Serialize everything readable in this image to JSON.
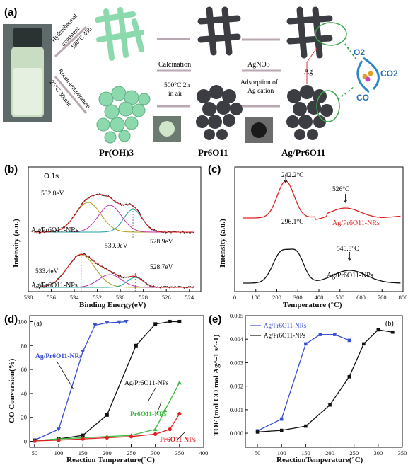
{
  "panel_labels": {
    "a": "(a)",
    "b": "(b)",
    "c": "(c)",
    "d": "(d)",
    "e": "(e)"
  },
  "scheme": {
    "route_top": [
      "Hydrothermal",
      "treatment",
      "180°C 45h"
    ],
    "route_bottom": [
      "Room-temperature",
      "25°C 30min"
    ],
    "calcination": "Calcination",
    "calc_cond": [
      "500°C 2h",
      "in air"
    ],
    "agno3": "AgNO3",
    "adsorption": [
      "Adsorption of",
      "Ag cation"
    ],
    "ag": "Ag",
    "o2": "O2",
    "co": "CO",
    "co2": "CO2",
    "names": [
      "Pr(OH)3",
      "Pr6O11",
      "Ag/Pr6O11"
    ]
  },
  "chart_data": [
    {
      "type": "line",
      "panel": "b",
      "title": "O 1s",
      "xlabel": "Binding Energy(eV)",
      "ylabel": "Intensity (a.u.)",
      "xlim": [
        538,
        523
      ],
      "xticks": [
        538,
        536,
        534,
        532,
        530,
        528,
        526,
        524
      ],
      "series": [
        {
          "name": "Ag/Pr6O11-NRs",
          "peaks": [
            532.8,
            530.9,
            528.9
          ],
          "peak_labels": [
            "532.8eV",
            "530.9eV",
            "528.9eV"
          ]
        },
        {
          "name": "Ag/Pr6O11-NPs",
          "peaks": [
            533.4,
            530.9,
            528.7
          ],
          "peak_labels": [
            "533.4eV",
            "",
            "528.7eV"
          ]
        }
      ]
    },
    {
      "type": "line",
      "panel": "c",
      "xlabel": "Temperature (°C)",
      "ylabel": "Intensity (a.u.)",
      "xlim": [
        0,
        800
      ],
      "xticks": [
        0,
        100,
        200,
        300,
        400,
        500,
        600,
        700,
        800
      ],
      "series": [
        {
          "name": "Ag/Pr6O11-NRs",
          "color": "#e02020",
          "peaks": [
            242.2,
            526
          ],
          "peak_labels": [
            "242.2°C",
            "526°C"
          ]
        },
        {
          "name": "Ag/Pr6O11-NPs",
          "color": "#111111",
          "peaks": [
            296.1,
            545.8
          ],
          "peak_labels": [
            "296.1°C",
            "545.8°C"
          ]
        }
      ]
    },
    {
      "type": "line",
      "panel": "d",
      "subtitle": "(a)",
      "xlabel": "Reaction Temperature(°C)",
      "ylabel": "CO Conversion(%)",
      "xlim": [
        40,
        400
      ],
      "ylim": [
        -5,
        105
      ],
      "xticks": [
        50,
        100,
        150,
        200,
        250,
        300,
        350,
        400
      ],
      "yticks": [
        0,
        20,
        40,
        60,
        80,
        100
      ],
      "series": [
        {
          "name": "Ag/Pr6O11-NRs",
          "color": "#3a4fd0",
          "marker": "triangle-down",
          "x": [
            50,
            100,
            150,
            175,
            200,
            225,
            240
          ],
          "y": [
            1,
            10,
            75,
            97,
            99,
            99.5,
            100
          ]
        },
        {
          "name": "Ag/Pr6O11-NPs",
          "color": "#111111",
          "marker": "square",
          "x": [
            50,
            100,
            150,
            200,
            260,
            300,
            330,
            350
          ],
          "y": [
            0.5,
            2,
            5,
            22,
            80,
            98,
            100,
            100
          ]
        },
        {
          "name": "Pr6O11-NRs",
          "color": "#3cb83c",
          "marker": "triangle-up",
          "x": [
            50,
            100,
            150,
            200,
            250,
            300,
            320,
            350
          ],
          "y": [
            0.5,
            2,
            3,
            4,
            5,
            10,
            26,
            49
          ]
        },
        {
          "name": "Pr6O11-NPs",
          "color": "#e02020",
          "marker": "circle",
          "x": [
            50,
            100,
            150,
            200,
            250,
            300,
            330,
            350
          ],
          "y": [
            0.3,
            1,
            2,
            3,
            4,
            6,
            10,
            23
          ]
        }
      ]
    },
    {
      "type": "line",
      "panel": "e",
      "subtitle": "(b)",
      "xlabel": "ReactionTemperature(°C)",
      "ylabel": "TOF (mol CO mol Ag^-1 s^-1)",
      "xlim": [
        25,
        350
      ],
      "ylim": [
        -0.0006,
        0.005
      ],
      "xticks": [
        50,
        100,
        150,
        200,
        250,
        300,
        350
      ],
      "yticks": [
        0.0,
        0.001,
        0.002,
        0.003,
        0.004,
        0.005
      ],
      "ytick_labels": [
        "0.000",
        "0.001",
        "0.002",
        "0.003",
        "0.004",
        "0.005"
      ],
      "series": [
        {
          "name": "Ag/Pr6O11-NRs",
          "color": "#3a4fd0",
          "marker": "square",
          "x": [
            50,
            100,
            150,
            180,
            210,
            240
          ],
          "y": [
            0.0001,
            0.0006,
            0.0038,
            0.0042,
            0.0042,
            0.00395
          ]
        },
        {
          "name": "Ag/Pr6O11-NPs",
          "color": "#111111",
          "marker": "square",
          "x": [
            50,
            100,
            150,
            200,
            240,
            270,
            300,
            330
          ],
          "y": [
            5e-05,
            0.00012,
            0.0003,
            0.0012,
            0.0024,
            0.0038,
            0.0044,
            0.0043
          ]
        }
      ]
    }
  ]
}
